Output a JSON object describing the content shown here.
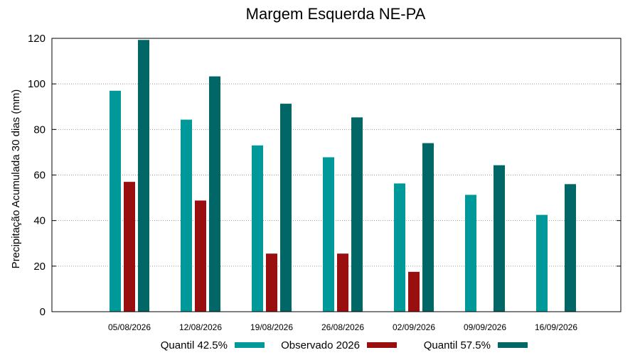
{
  "chart_data": {
    "type": "bar",
    "title": "Margem Esquerda NE-PA",
    "xlabel": "",
    "ylabel": "Precipitação Acumulada 30 dias (mm)",
    "ylim": [
      0,
      120
    ],
    "yticks": [
      0,
      20,
      40,
      60,
      80,
      100,
      120
    ],
    "grid": true,
    "legend_placement": "bottom",
    "categories": [
      "05/08/2026",
      "12/08/2026",
      "19/08/2026",
      "26/08/2026",
      "02/09/2026",
      "09/09/2026",
      "16/09/2026"
    ],
    "series": [
      {
        "name": "Quantil 42.5%",
        "color": "#009999",
        "values": [
          97,
          84.3,
          73,
          67.8,
          56.3,
          51.3,
          42.5
        ]
      },
      {
        "name": "Observado 2026",
        "color": "#990F0F",
        "values": [
          57,
          48.8,
          25.5,
          25.5,
          17.5,
          null,
          null
        ]
      },
      {
        "name": "Quantil 57.5%",
        "color": "#006666",
        "values": [
          119.3,
          103.3,
          91.3,
          85.3,
          74,
          64.3,
          56
        ]
      }
    ]
  }
}
